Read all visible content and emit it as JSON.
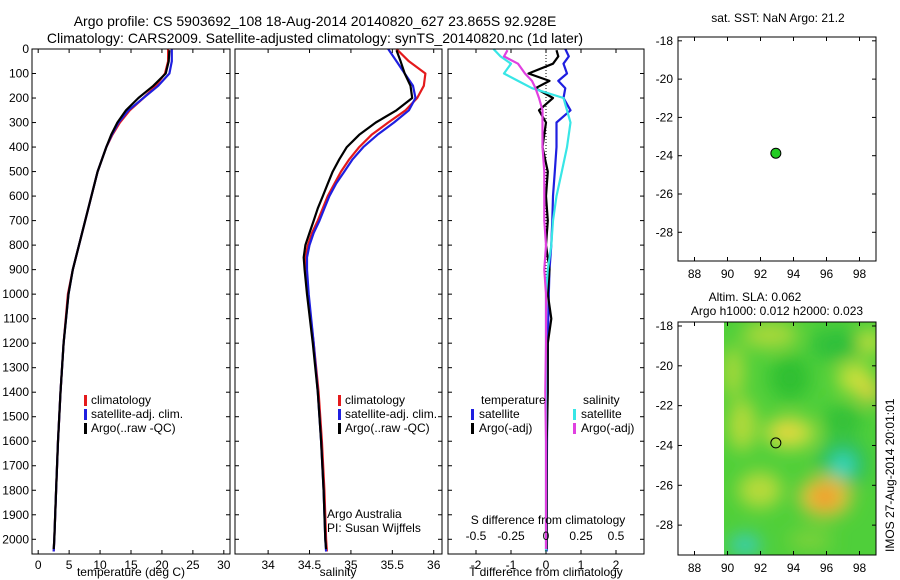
{
  "title_line1": "Argo profile: CS 5903692_108 18-Aug-2014 20140820_627 23.865S 92.928E",
  "title_line2": "Climatology: CARS2009. Satellite-adjusted climatology: synTS_20140820.nc (1d later)",
  "watermark": "IMOS 27-Aug-2014 20:01:01",
  "colors": {
    "red": "#e41a1c",
    "blue": "#1f1fe0",
    "black": "#000000",
    "cyan": "#38e6e6",
    "magenta": "#e040e0",
    "green": "#22cc22"
  },
  "depth_ticks": [
    0,
    100,
    200,
    300,
    400,
    500,
    600,
    700,
    800,
    900,
    1000,
    1100,
    1200,
    1300,
    1400,
    1500,
    1600,
    1700,
    1800,
    1900,
    2000
  ],
  "chart_data": [
    {
      "type": "line",
      "id": "temperature",
      "xlabel": "temperature (deg C)",
      "xlim": [
        -1,
        31
      ],
      "ylim": [
        2060,
        0
      ],
      "xticks": [
        0,
        5,
        10,
        15,
        20,
        25,
        30
      ],
      "legend": [
        "climatology",
        "satellite-adj. clim.",
        "Argo(..raw -QC)"
      ],
      "series": [
        {
          "name": "climatology",
          "color": "red",
          "depth": [
            0,
            50,
            100,
            150,
            200,
            250,
            300,
            350,
            400,
            500,
            600,
            700,
            800,
            900,
            1000,
            1200,
            1400,
            1600,
            1800,
            2000,
            2050
          ],
          "values": [
            21.0,
            21.0,
            20.5,
            19.0,
            17.0,
            14.8,
            13.2,
            12.0,
            11.0,
            9.6,
            8.6,
            7.6,
            6.6,
            5.6,
            4.8,
            4.1,
            3.6,
            3.2,
            2.9,
            2.6,
            2.5
          ]
        },
        {
          "name": "satellite-adj. clim.",
          "color": "blue",
          "depth": [
            0,
            50,
            100,
            150,
            200,
            250,
            300,
            350,
            400,
            500,
            600,
            700,
            800,
            900,
            1000,
            1200,
            1400,
            1600,
            1800,
            2000,
            2050
          ],
          "values": [
            21.6,
            21.6,
            21.2,
            19.4,
            17.0,
            14.6,
            13.0,
            11.9,
            11.0,
            9.6,
            8.6,
            7.6,
            6.6,
            5.6,
            4.9,
            4.1,
            3.6,
            3.2,
            2.9,
            2.6,
            2.5
          ]
        },
        {
          "name": "Argo(..raw -QC)",
          "color": "black",
          "depth": [
            5,
            50,
            100,
            150,
            200,
            250,
            300,
            350,
            400,
            500,
            600,
            700,
            800,
            900,
            1000,
            1200,
            1400,
            1600,
            1800,
            2000,
            2040
          ],
          "values": [
            21.2,
            21.1,
            20.6,
            18.6,
            16.2,
            14.2,
            12.8,
            11.8,
            11.0,
            9.6,
            8.6,
            7.6,
            6.6,
            5.6,
            4.9,
            4.1,
            3.6,
            3.2,
            2.9,
            2.6,
            2.5
          ]
        }
      ]
    },
    {
      "type": "line",
      "id": "salinity",
      "xlabel": "salinity",
      "xlim": [
        33.6,
        36.1
      ],
      "ylim": [
        2060,
        0
      ],
      "xticks": [
        34,
        34.5,
        35,
        35.5,
        36
      ],
      "legend": [
        "climatology",
        "satellite-adj. clim.",
        "Argo(..raw -QC)"
      ],
      "annotation": [
        "Argo Australia",
        "PI: Susan Wijffels"
      ],
      "series": [
        {
          "name": "climatology",
          "color": "red",
          "depth": [
            0,
            50,
            100,
            150,
            200,
            250,
            300,
            350,
            400,
            450,
            500,
            550,
            600,
            650,
            700,
            750,
            800,
            850,
            900,
            1000,
            1200,
            1400,
            1600,
            1800,
            2000,
            2050
          ],
          "values": [
            35.55,
            35.7,
            35.9,
            35.88,
            35.8,
            35.66,
            35.45,
            35.25,
            35.1,
            34.98,
            34.88,
            34.8,
            34.72,
            34.66,
            34.6,
            34.53,
            34.48,
            34.45,
            34.45,
            34.48,
            34.55,
            34.61,
            34.65,
            34.68,
            34.7,
            34.71
          ]
        },
        {
          "name": "satellite-adj. clim.",
          "color": "blue",
          "depth": [
            0,
            50,
            100,
            150,
            200,
            250,
            300,
            350,
            400,
            450,
            500,
            550,
            600,
            650,
            700,
            750,
            800,
            850,
            900,
            1000,
            1200,
            1400,
            1600,
            1800,
            2000,
            2050
          ],
          "values": [
            35.45,
            35.55,
            35.65,
            35.75,
            35.78,
            35.7,
            35.52,
            35.32,
            35.15,
            35.02,
            34.92,
            34.82,
            34.74,
            34.68,
            34.62,
            34.55,
            34.5,
            34.47,
            34.47,
            34.49,
            34.55,
            34.6,
            34.64,
            34.67,
            34.69,
            34.7
          ]
        },
        {
          "name": "Argo(..raw -QC)",
          "color": "black",
          "depth": [
            5,
            50,
            100,
            150,
            200,
            250,
            300,
            350,
            400,
            450,
            500,
            550,
            600,
            650,
            700,
            750,
            800,
            850,
            900,
            1000,
            1200,
            1400,
            1600,
            1800,
            2000,
            2040
          ],
          "values": [
            35.55,
            35.6,
            35.65,
            35.72,
            35.74,
            35.55,
            35.3,
            35.1,
            34.95,
            34.86,
            34.78,
            34.72,
            34.66,
            34.6,
            34.55,
            34.5,
            34.45,
            34.43,
            34.44,
            34.47,
            34.54,
            34.6,
            34.64,
            34.67,
            34.69,
            34.7
          ]
        }
      ]
    },
    {
      "type": "line",
      "id": "differences",
      "xlabel": "T difference from climatology",
      "xlabel_top": "S difference from climatology",
      "xlim": [
        -2.8,
        2.8
      ],
      "ylim": [
        2060,
        0
      ],
      "xticks": [
        -2,
        -1,
        0,
        1,
        2
      ],
      "s_ticks": [
        -0.5,
        -0.25,
        0,
        0.25,
        0.5
      ],
      "s_tick_labels": [
        "-0.5",
        "-0.25",
        "0",
        "0.25",
        "0.5"
      ],
      "legend": {
        "temperature_heading": "temperature",
        "salinity_heading": "salinity",
        "items": [
          "satellite",
          "Argo(-adj)",
          "satellite",
          "Argo(-adj)"
        ]
      },
      "series": [
        {
          "name": "temperature satellite",
          "color": "blue",
          "depth": [
            0,
            30,
            60,
            100,
            130,
            160,
            200,
            250,
            300,
            400,
            500,
            600,
            700,
            800,
            900,
            1000,
            1200,
            1400,
            1600,
            1800,
            2000,
            2050
          ],
          "values": [
            0.55,
            0.65,
            0.5,
            0.6,
            0.35,
            0.55,
            0.5,
            0.7,
            0.3,
            0.3,
            0.25,
            0.2,
            0.18,
            0.15,
            0.1,
            0.08,
            0.05,
            0.04,
            0.03,
            0.02,
            0.02,
            0.02
          ]
        },
        {
          "name": "temperature Argo(-adj)",
          "color": "black",
          "depth": [
            5,
            30,
            60,
            100,
            130,
            160,
            200,
            250,
            300,
            400,
            500,
            600,
            700,
            800,
            900,
            1000,
            1100,
            1200,
            1400,
            1600,
            1800,
            2000,
            2040
          ],
          "values": [
            0.3,
            0.35,
            0.2,
            -0.5,
            0.1,
            -0.3,
            0.2,
            -0.2,
            0.0,
            -0.1,
            0.05,
            0.0,
            0.05,
            0.0,
            0.1,
            0.05,
            0.15,
            0.05,
            0.05,
            0.02,
            0.02,
            0.02,
            0.02
          ]
        },
        {
          "name": "salinity satellite",
          "color": "cyan",
          "depth": [
            0,
            30,
            60,
            100,
            130,
            160,
            200,
            250,
            300,
            400,
            500,
            600,
            700,
            800,
            900,
            1000,
            1200,
            1400,
            1600,
            1800,
            2000,
            2050
          ],
          "values": [
            -1.5,
            -1.3,
            -1.0,
            -1.2,
            -0.8,
            -0.4,
            0.5,
            0.6,
            0.7,
            0.6,
            0.45,
            0.3,
            0.2,
            0.15,
            0.05,
            0.0,
            0.0,
            0.0,
            0.0,
            0.0,
            0.0,
            0.0
          ]
        },
        {
          "name": "salinity Argo(-adj)",
          "color": "magenta",
          "depth": [
            5,
            30,
            60,
            100,
            130,
            160,
            200,
            250,
            300,
            400,
            500,
            600,
            700,
            800,
            900,
            1000,
            1200,
            1400,
            1600,
            1800,
            2000,
            2040
          ],
          "values": [
            -1.1,
            -1.2,
            -0.8,
            -0.6,
            -0.4,
            -0.3,
            -0.2,
            -0.1,
            -0.1,
            -0.1,
            -0.05,
            -0.05,
            -0.05,
            0.0,
            -0.05,
            0.0,
            0.0,
            -0.02,
            0.0,
            0.0,
            0.0,
            0.0
          ]
        }
      ]
    },
    {
      "type": "scatter",
      "id": "sst-map",
      "title": "sat. SST: NaN Argo: 21.2",
      "xlim": [
        87,
        99
      ],
      "ylim": [
        -29.5,
        -17.8
      ],
      "xticks": [
        88,
        90,
        92,
        94,
        96,
        98
      ],
      "xtick_labels": [
        "88",
        "90",
        "92",
        "94",
        "96",
        "98"
      ],
      "yticks": [
        -28,
        -26,
        -24,
        -22,
        -20,
        -18
      ],
      "ytick_labels": [
        "-28",
        "-26",
        "-24",
        "-22",
        "-20",
        "-18"
      ],
      "points": [
        {
          "x": 92.93,
          "y": -23.87,
          "color": "green"
        }
      ]
    },
    {
      "type": "heatmap",
      "id": "sla-map",
      "title_line1": "Altim. SLA: 0.062",
      "title_line2": "Argo h1000: 0.012 h2000: 0.023",
      "xlim": [
        87,
        99
      ],
      "ylim": [
        -29.5,
        -17.8
      ],
      "xticks": [
        88,
        90,
        92,
        94,
        96,
        98
      ],
      "xtick_labels": [
        "88",
        "90",
        "92",
        "94",
        "96",
        "98"
      ],
      "yticks": [
        -28,
        -26,
        -24,
        -22,
        -20,
        -18
      ],
      "ytick_labels": [
        "-28",
        "-26",
        "-24",
        "-22",
        "-20",
        "-18"
      ],
      "data_x_range": [
        90,
        99
      ],
      "points": [
        {
          "x": 92.93,
          "y": -23.87
        }
      ]
    }
  ]
}
